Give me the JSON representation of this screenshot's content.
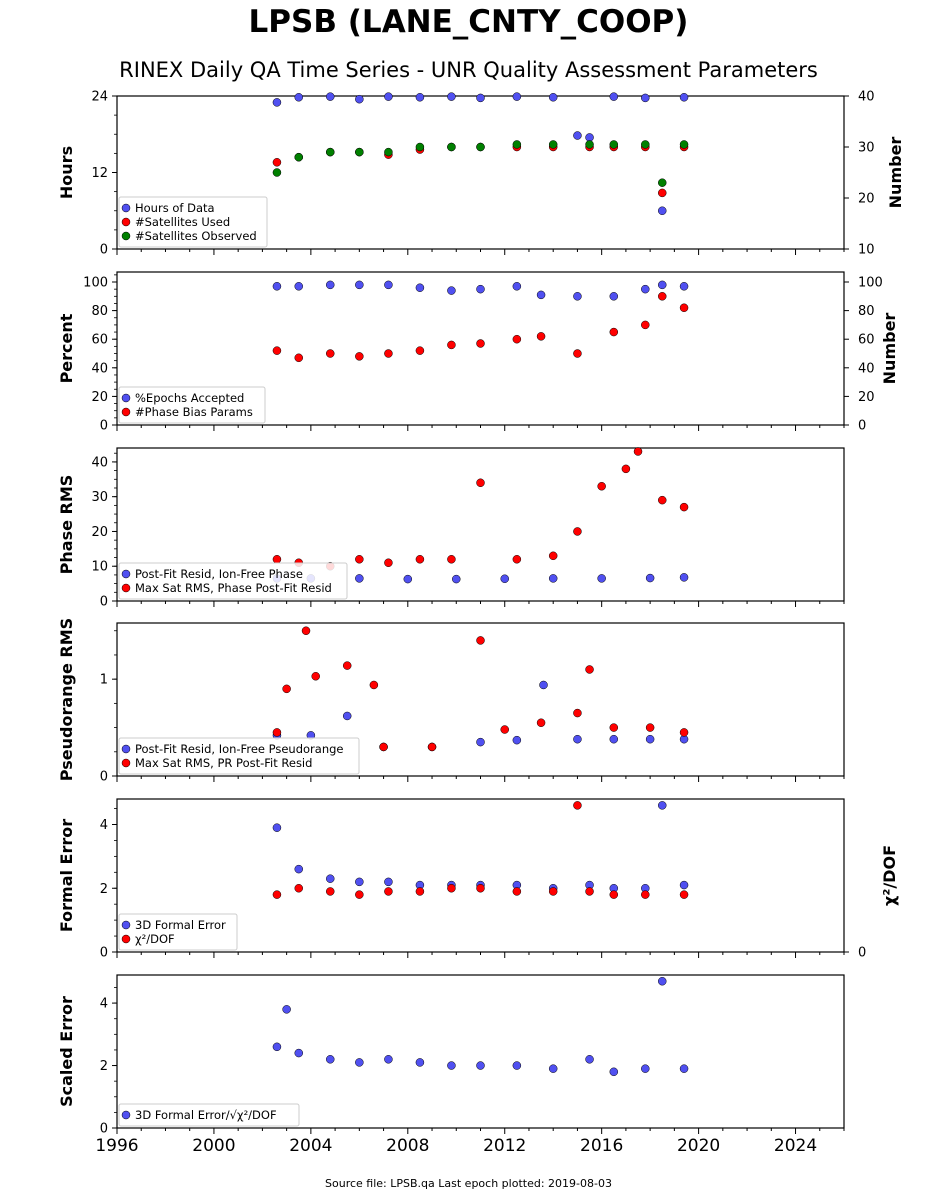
{
  "page": {
    "title": "LPSB (LANE_CNTY_COOP)",
    "subtitle": "RINEX Daily QA Time Series - UNR Quality Assessment Parameters",
    "footer": "Source file: LPSB.qa Last epoch plotted: 2019-08-03"
  },
  "colors": {
    "blue": "#5050f0",
    "red": "#ff0000",
    "green": "#008000",
    "edge": "#000000"
  },
  "chart_data": [
    {
      "type": "scatter",
      "ylabel": "Hours",
      "ylabel_right": "Number",
      "xlim": [
        1996,
        2026
      ],
      "ylim": [
        0,
        24
      ],
      "yticks": [
        0,
        12,
        24
      ],
      "ylim_right": [
        10,
        40
      ],
      "yticks_right": [
        10,
        20,
        30,
        40
      ],
      "legend_position": "lower-left",
      "series": [
        {
          "name": "Hours of Data",
          "color": "blue",
          "axis": "left",
          "points": [
            [
              2002.6,
              23.0
            ],
            [
              2003.5,
              23.8
            ],
            [
              2004.8,
              23.9
            ],
            [
              2006.0,
              23.5
            ],
            [
              2007.2,
              23.9
            ],
            [
              2008.5,
              23.8
            ],
            [
              2009.8,
              23.9
            ],
            [
              2011.0,
              23.7
            ],
            [
              2012.5,
              23.9
            ],
            [
              2014.0,
              23.8
            ],
            [
              2015.0,
              17.8
            ],
            [
              2015.5,
              17.5
            ],
            [
              2016.5,
              23.9
            ],
            [
              2017.8,
              23.7
            ],
            [
              2018.5,
              6.0
            ],
            [
              2019.4,
              23.8
            ]
          ]
        },
        {
          "name": "#Satellites Used",
          "color": "red",
          "axis": "right",
          "points": [
            [
              2002.6,
              27
            ],
            [
              2003.5,
              28
            ],
            [
              2004.8,
              29
            ],
            [
              2006.0,
              29
            ],
            [
              2007.2,
              28.5
            ],
            [
              2008.5,
              29.5
            ],
            [
              2009.8,
              30
            ],
            [
              2011.0,
              30
            ],
            [
              2012.5,
              30
            ],
            [
              2014.0,
              30
            ],
            [
              2015.5,
              30
            ],
            [
              2016.5,
              30
            ],
            [
              2017.8,
              30
            ],
            [
              2018.5,
              21
            ],
            [
              2019.4,
              30
            ]
          ]
        },
        {
          "name": "#Satellites Observed",
          "color": "green",
          "axis": "right",
          "points": [
            [
              2002.6,
              25
            ],
            [
              2003.5,
              28
            ],
            [
              2004.8,
              29
            ],
            [
              2006.0,
              29
            ],
            [
              2007.2,
              29
            ],
            [
              2008.5,
              30
            ],
            [
              2009.8,
              30
            ],
            [
              2011.0,
              30
            ],
            [
              2012.5,
              30.5
            ],
            [
              2014.0,
              30.5
            ],
            [
              2015.5,
              30.5
            ],
            [
              2016.5,
              30.5
            ],
            [
              2017.8,
              30.5
            ],
            [
              2018.5,
              23
            ],
            [
              2019.4,
              30.5
            ]
          ]
        }
      ]
    },
    {
      "type": "scatter",
      "ylabel": "Percent",
      "ylabel_right": "Number",
      "xlim": [
        1996,
        2026
      ],
      "ylim": [
        0,
        107
      ],
      "yticks": [
        0,
        20,
        40,
        60,
        80,
        100
      ],
      "ylim_right": [
        0,
        107
      ],
      "yticks_right": [
        0,
        20,
        40,
        60,
        80,
        100
      ],
      "legend_position": "lower-left",
      "series": [
        {
          "name": "%Epochs Accepted",
          "color": "blue",
          "axis": "left",
          "points": [
            [
              2002.6,
              97
            ],
            [
              2003.5,
              97
            ],
            [
              2004.8,
              98
            ],
            [
              2006.0,
              98
            ],
            [
              2007.2,
              98
            ],
            [
              2008.5,
              96
            ],
            [
              2009.8,
              94
            ],
            [
              2011.0,
              95
            ],
            [
              2012.5,
              97
            ],
            [
              2013.5,
              91
            ],
            [
              2015.0,
              90
            ],
            [
              2016.5,
              90
            ],
            [
              2017.8,
              95
            ],
            [
              2018.5,
              98
            ],
            [
              2019.4,
              97
            ]
          ]
        },
        {
          "name": "#Phase Bias Params",
          "color": "red",
          "axis": "right",
          "points": [
            [
              2002.6,
              52
            ],
            [
              2003.5,
              47
            ],
            [
              2004.8,
              50
            ],
            [
              2006.0,
              48
            ],
            [
              2007.2,
              50
            ],
            [
              2008.5,
              52
            ],
            [
              2009.8,
              56
            ],
            [
              2011.0,
              57
            ],
            [
              2012.5,
              60
            ],
            [
              2013.5,
              62
            ],
            [
              2015.0,
              50
            ],
            [
              2016.5,
              65
            ],
            [
              2017.8,
              70
            ],
            [
              2018.5,
              90
            ],
            [
              2019.4,
              82
            ]
          ]
        }
      ]
    },
    {
      "type": "scatter",
      "ylabel": "Phase RMS",
      "xlim": [
        1996,
        2026
      ],
      "ylim": [
        0,
        44
      ],
      "yticks": [
        0,
        10,
        20,
        30,
        40
      ],
      "legend_position": "lower-left",
      "series": [
        {
          "name": "Post-Fit Resid, Ion-Free Phase",
          "color": "blue",
          "points": [
            [
              2002.6,
              6.5
            ],
            [
              2004.0,
              6.5
            ],
            [
              2006.0,
              6.5
            ],
            [
              2008.0,
              6.3
            ],
            [
              2010.0,
              6.3
            ],
            [
              2012.0,
              6.4
            ],
            [
              2014.0,
              6.5
            ],
            [
              2016.0,
              6.5
            ],
            [
              2018.0,
              6.6
            ],
            [
              2019.4,
              6.8
            ]
          ]
        },
        {
          "name": "Max Sat RMS, Phase Post-Fit Resid",
          "color": "red",
          "points": [
            [
              2002.6,
              12
            ],
            [
              2003.5,
              11
            ],
            [
              2004.8,
              10
            ],
            [
              2006.0,
              12
            ],
            [
              2007.2,
              11
            ],
            [
              2008.5,
              12
            ],
            [
              2009.8,
              12
            ],
            [
              2011.0,
              34
            ],
            [
              2012.5,
              12
            ],
            [
              2014.0,
              13
            ],
            [
              2015.0,
              20
            ],
            [
              2016.0,
              33
            ],
            [
              2017.0,
              38
            ],
            [
              2017.5,
              43
            ],
            [
              2018.5,
              29
            ],
            [
              2019.4,
              27
            ]
          ]
        }
      ]
    },
    {
      "type": "scatter",
      "ylabel": "Pseudorange RMS",
      "xlim": [
        1996,
        2026
      ],
      "ylim": [
        0,
        1.58
      ],
      "yticks": [
        0,
        1
      ],
      "legend_position": "lower-left",
      "series": [
        {
          "name": "Post-Fit Resid, Ion-Free Pseudorange",
          "color": "blue",
          "points": [
            [
              2002.6,
              0.42
            ],
            [
              2004.0,
              0.42
            ],
            [
              2005.5,
              0.62
            ],
            [
              2007.0,
              0.3
            ],
            [
              2009.0,
              0.3
            ],
            [
              2011.0,
              0.35
            ],
            [
              2012.5,
              0.37
            ],
            [
              2013.6,
              0.94
            ],
            [
              2015.0,
              0.38
            ],
            [
              2016.5,
              0.38
            ],
            [
              2018.0,
              0.38
            ],
            [
              2019.4,
              0.38
            ]
          ]
        },
        {
          "name": "Max Sat RMS, PR Post-Fit Resid",
          "color": "red",
          "points": [
            [
              2002.6,
              0.45
            ],
            [
              2003.0,
              0.9
            ],
            [
              2003.8,
              1.5
            ],
            [
              2004.2,
              1.03
            ],
            [
              2005.5,
              1.14
            ],
            [
              2006.6,
              0.94
            ],
            [
              2007.0,
              0.3
            ],
            [
              2009.0,
              0.3
            ],
            [
              2011.0,
              1.4
            ],
            [
              2012.0,
              0.48
            ],
            [
              2013.5,
              0.55
            ],
            [
              2015.0,
              0.65
            ],
            [
              2015.5,
              1.1
            ],
            [
              2016.5,
              0.5
            ],
            [
              2018.0,
              0.5
            ],
            [
              2019.4,
              0.45
            ]
          ]
        }
      ]
    },
    {
      "type": "scatter",
      "ylabel": "Formal Error",
      "ylabel_right": "χ²/DOF",
      "xlim": [
        1996,
        2026
      ],
      "ylim": [
        0,
        4.8
      ],
      "yticks": [
        0,
        2,
        4
      ],
      "yticks_right": [
        0
      ],
      "legend_position": "lower-left",
      "series": [
        {
          "name": "3D Formal Error",
          "color": "blue",
          "points": [
            [
              2002.6,
              3.9
            ],
            [
              2003.5,
              2.6
            ],
            [
              2004.8,
              2.3
            ],
            [
              2006.0,
              2.2
            ],
            [
              2007.2,
              2.2
            ],
            [
              2008.5,
              2.1
            ],
            [
              2009.8,
              2.1
            ],
            [
              2011.0,
              2.1
            ],
            [
              2012.5,
              2.1
            ],
            [
              2014.0,
              2.0
            ],
            [
              2015.5,
              2.1
            ],
            [
              2016.5,
              2.0
            ],
            [
              2017.8,
              2.0
            ],
            [
              2018.5,
              4.6
            ],
            [
              2019.4,
              2.1
            ]
          ]
        },
        {
          "name": "χ²/DOF",
          "color": "red",
          "points": [
            [
              2002.6,
              1.8
            ],
            [
              2003.5,
              2.0
            ],
            [
              2004.8,
              1.9
            ],
            [
              2006.0,
              1.8
            ],
            [
              2007.2,
              1.9
            ],
            [
              2008.5,
              1.9
            ],
            [
              2009.8,
              2.0
            ],
            [
              2011.0,
              2.0
            ],
            [
              2012.5,
              1.9
            ],
            [
              2014.0,
              1.9
            ],
            [
              2015.0,
              4.6
            ],
            [
              2015.5,
              1.9
            ],
            [
              2016.5,
              1.8
            ],
            [
              2017.8,
              1.8
            ],
            [
              2019.4,
              1.8
            ]
          ]
        }
      ]
    },
    {
      "type": "scatter",
      "ylabel": "Scaled Error",
      "xlim": [
        1996,
        2026
      ],
      "ylim": [
        0,
        4.9
      ],
      "yticks": [
        0,
        2,
        4
      ],
      "xticks": [
        1996,
        2000,
        2004,
        2008,
        2012,
        2016,
        2020,
        2024
      ],
      "legend_position": "lower-left",
      "series": [
        {
          "name": "3D Formal Error/√χ²/DOF",
          "color": "blue",
          "points": [
            [
              2002.6,
              2.6
            ],
            [
              2003.0,
              3.8
            ],
            [
              2003.5,
              2.4
            ],
            [
              2004.8,
              2.2
            ],
            [
              2006.0,
              2.1
            ],
            [
              2007.2,
              2.2
            ],
            [
              2008.5,
              2.1
            ],
            [
              2009.8,
              2.0
            ],
            [
              2011.0,
              2.0
            ],
            [
              2012.5,
              2.0
            ],
            [
              2014.0,
              1.9
            ],
            [
              2015.5,
              2.2
            ],
            [
              2016.5,
              1.8
            ],
            [
              2017.8,
              1.9
            ],
            [
              2018.5,
              4.7
            ],
            [
              2019.4,
              1.9
            ]
          ]
        }
      ]
    }
  ]
}
